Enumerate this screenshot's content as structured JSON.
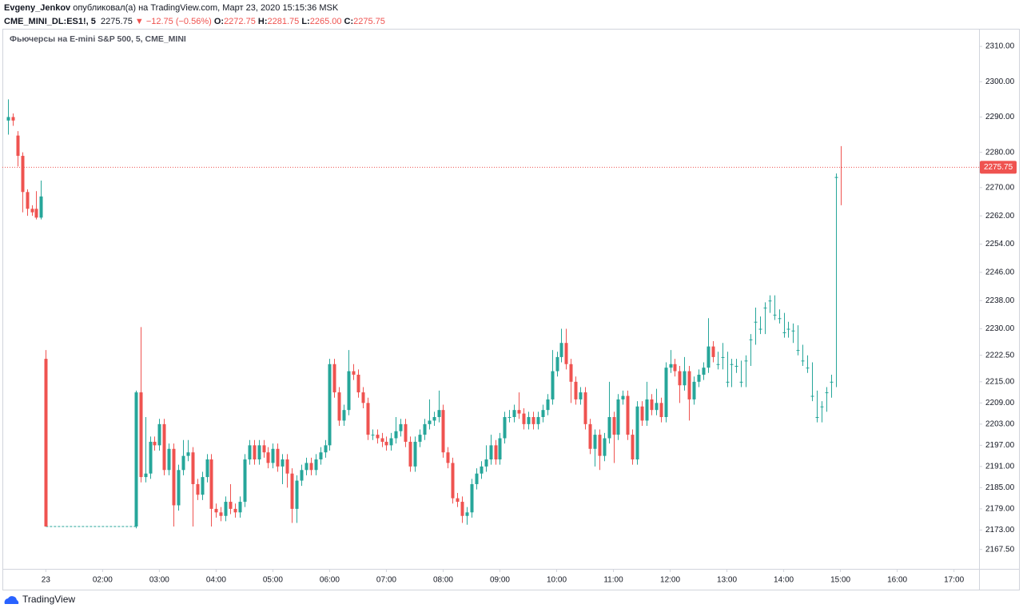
{
  "header": {
    "author": "Evgeny_Jenkov",
    "published": "опубликовал(а) на TradingView.com, Март 23, 2020 15:15:36 MSK",
    "symbol": "CME_MINI_DL:ES1!, 5",
    "price": "2275.75",
    "change": "▼ −12.75 (−0.56%)",
    "o_label": "O:",
    "o": "2272.75",
    "h_label": "H:",
    "h": "2281.75",
    "l_label": "L:",
    "l": "2265.00",
    "c_label": "C:",
    "c": "2275.75"
  },
  "footer": {
    "brand": "TradingView"
  },
  "chart_data": {
    "type": "candlestick",
    "title": "Фьючерсы на E-mini S&P 500, 5, CME_MINI",
    "xlim": [
      -1.18,
      205.3
    ],
    "xticks": [
      {
        "value": 8,
        "label": "23"
      },
      {
        "value": 20,
        "label": "02:00"
      },
      {
        "value": 32,
        "label": "03:00"
      },
      {
        "value": 44,
        "label": "04:00"
      },
      {
        "value": 56,
        "label": "05:00"
      },
      {
        "value": 68,
        "label": "06:00"
      },
      {
        "value": 80,
        "label": "07:00"
      },
      {
        "value": 92,
        "label": "08:00"
      },
      {
        "value": 104,
        "label": "09:00"
      },
      {
        "value": 116,
        "label": "10:00"
      },
      {
        "value": 128,
        "label": "11:00"
      },
      {
        "value": 140,
        "label": "12:00"
      },
      {
        "value": 152,
        "label": "13:00"
      },
      {
        "value": 164,
        "label": "14:00"
      },
      {
        "value": 176,
        "label": "15:00"
      },
      {
        "value": 188,
        "label": "16:00"
      },
      {
        "value": 200,
        "label": "17:00"
      }
    ],
    "ylim": [
      2162,
      2315
    ],
    "yticks": [
      {
        "value": 2310,
        "label": "2310.00"
      },
      {
        "value": 2300,
        "label": "2300.00"
      },
      {
        "value": 2290,
        "label": "2290.00"
      },
      {
        "value": 2280,
        "label": "2280.00"
      },
      {
        "value": 2270,
        "label": "2270.00"
      },
      {
        "value": 2262,
        "label": "2262.00"
      },
      {
        "value": 2254,
        "label": "2254.00"
      },
      {
        "value": 2246,
        "label": "2246.00"
      },
      {
        "value": 2238,
        "label": "2238.00"
      },
      {
        "value": 2230,
        "label": "2230.00"
      },
      {
        "value": 2222.5,
        "label": "2222.50"
      },
      {
        "value": 2215,
        "label": "2215.00"
      },
      {
        "value": 2209,
        "label": "2209.00"
      },
      {
        "value": 2203,
        "label": "2203.00"
      },
      {
        "value": 2197,
        "label": "2197.00"
      },
      {
        "value": 2191,
        "label": "2191.00"
      },
      {
        "value": 2185,
        "label": "2185.00"
      },
      {
        "value": 2179,
        "label": "2179.00"
      },
      {
        "value": 2173,
        "label": "2173.00"
      },
      {
        "value": 2167.5,
        "label": "2167.50"
      }
    ],
    "grid": false,
    "last_price_line": true,
    "x": [
      0,
      1,
      2,
      3,
      4,
      5,
      6,
      7,
      8,
      27,
      28,
      29,
      30,
      31,
      32,
      33,
      34,
      35,
      36,
      37,
      38,
      39,
      40,
      41,
      42,
      43,
      44,
      45,
      46,
      47,
      48,
      49,
      50,
      51,
      52,
      53,
      54,
      55,
      56,
      57,
      58,
      59,
      60,
      61,
      62,
      63,
      64,
      65,
      66,
      67,
      68,
      69,
      70,
      71,
      72,
      73,
      74,
      75,
      76,
      77,
      78,
      79,
      80,
      81,
      82,
      83,
      84,
      85,
      86,
      87,
      88,
      89,
      90,
      91,
      92,
      93,
      94,
      95,
      96,
      97,
      98,
      99,
      100,
      101,
      102,
      103,
      104,
      105,
      106,
      107,
      108,
      109,
      110,
      111,
      112,
      113,
      114,
      115,
      116,
      117,
      118,
      119,
      120,
      121,
      122,
      123,
      124,
      125,
      126,
      127,
      128,
      129,
      130,
      131,
      132,
      133,
      134,
      135,
      136,
      137,
      138,
      139,
      140,
      141,
      142,
      143,
      144,
      145,
      146,
      147,
      148,
      149,
      150,
      151,
      152,
      153,
      154,
      155,
      156,
      157,
      158,
      159,
      160,
      161,
      162,
      163,
      164,
      165,
      166,
      167,
      168,
      169,
      170,
      171,
      172,
      173,
      174,
      175,
      176
    ],
    "series": [
      {
        "up_color": "#26a69a",
        "down_color": "#ef5350",
        "open": [
          2289,
          2290,
          2284.75,
          2279,
          2268.75,
          2264,
          2264,
          2261.5,
          2221.5,
          2174,
          2212,
          2188,
          2189,
          2198,
          2197,
          2203,
          2190,
          2196,
          2180,
          2190,
          2194,
          2195,
          2186,
          2183,
          2188,
          2193,
          2179,
          2178,
          2177,
          2181,
          2179,
          2178,
          2181,
          2193,
          2197,
          2193,
          2197,
          2195,
          2192,
          2196,
          2191,
          2193,
          2189,
          2179,
          2187,
          2190,
          2192,
          2190,
          2193,
          2195,
          2197,
          2220,
          2212,
          2204,
          2207,
          2218,
          2217,
          2212,
          2209,
          2200,
          2200,
          2199,
          2198,
          2197,
          2199,
          2201,
          2203,
          2198,
          2191,
          2198,
          2200,
          2203,
          2204,
          2205,
          2207,
          2195,
          2192,
          2182,
          2181,
          2177,
          2178,
          2186,
          2189,
          2191,
          2193,
          2197,
          2193,
          2199,
          2205,
          2205,
          2207,
          2206,
          2203,
          2205,
          2203,
          2205,
          2207,
          2210,
          2218,
          2222,
          2226,
          2220,
          2215,
          2210,
          2212,
          2203,
          2196,
          2200,
          2194,
          2199,
          2205,
          2200,
          2210,
          2211,
          2200,
          2193,
          2208,
          2204,
          2210,
          2207,
          2209,
          2205,
          2219,
          2220,
          2218,
          2214,
          2218,
          2210,
          2215,
          2217,
          2219,
          2225,
          2220,
          2222,
          2215,
          2220,
          2219.5,
          2215,
          2221,
          2227,
          2232,
          2230,
          2236,
          2238,
          2234,
          2233,
          2229,
          2230,
          2229.5,
          2224,
          2221,
          2219,
          2211,
          2205,
          2208,
          2212,
          2215,
          2272.75
        ],
        "high": [
          2295,
          2291,
          2286,
          2280,
          2269.5,
          2265,
          2269,
          2272,
          2224,
          2212.5,
          2230.5,
          2205,
          2199.5,
          2199.5,
          2204.5,
          2204.5,
          2197.5,
          2197.5,
          2191.5,
          2198.5,
          2198.5,
          2196.5,
          2187.5,
          2189.5,
          2194.5,
          2194.5,
          2180.5,
          2179.5,
          2182.5,
          2186,
          2180.5,
          2182.5,
          2194.5,
          2198.5,
          2198.5,
          2198.5,
          2198.5,
          2196.5,
          2197.5,
          2197.5,
          2194.5,
          2194.5,
          2190.5,
          2188.5,
          2191.5,
          2193.5,
          2193.5,
          2194.5,
          2196.5,
          2198.5,
          2221.5,
          2221.5,
          2213.5,
          2208.5,
          2224,
          2220,
          2218.5,
          2213.5,
          2210.5,
          2201.5,
          2201.5,
          2200.5,
          2199.5,
          2200.5,
          2205,
          2204.5,
          2204.5,
          2199.5,
          2199.5,
          2201.5,
          2204.5,
          2210,
          2206.5,
          2212.5,
          2208.5,
          2196.5,
          2193.5,
          2183.5,
          2182.5,
          2179.5,
          2187.5,
          2190.5,
          2192.5,
          2197,
          2200,
          2198.5,
          2200.5,
          2206.5,
          2207,
          2208.5,
          2212,
          2207.5,
          2206.5,
          2206.5,
          2206.5,
          2208.5,
          2211.5,
          2224,
          2223.5,
          2230,
          2230,
          2221.5,
          2216.5,
          2213.5,
          2213.5,
          2204.5,
          2201.5,
          2201.5,
          2200.5,
          2215,
          2206.5,
          2211.5,
          2212.5,
          2212.5,
          2201.5,
          2209.5,
          2209.5,
          2215,
          2211.5,
          2213,
          2210.5,
          2220.5,
          2224,
          2221.5,
          2219.5,
          2222,
          2219.5,
          2216.5,
          2218.5,
          2220.5,
          2233,
          2226.5,
          2223.5,
          2226,
          2223.5,
          2221.5,
          2221.5,
          2221,
          2222.5,
          2228.5,
          2236,
          2233.5,
          2237.5,
          2239.5,
          2239.5,
          2235.5,
          2234.5,
          2232,
          2231.5,
          2231,
          2225.5,
          2222.5,
          2220.5,
          2212.5,
          2209.5,
          2213.5,
          2217,
          2274,
          2281.75
        ],
        "low": [
          2285,
          2287.5,
          2276,
          2263,
          2262,
          2262,
          2261,
          2261,
          2174,
          2173.5,
          2186.5,
          2186.5,
          2187.5,
          2195.5,
          2195.5,
          2188.5,
          2188.5,
          2174,
          2178.5,
          2188.5,
          2192.5,
          2174,
          2181.5,
          2181.5,
          2186.5,
          2174,
          2176.5,
          2175.5,
          2175.5,
          2177.5,
          2176.5,
          2176.5,
          2179.5,
          2191.5,
          2191.5,
          2191.5,
          2193.5,
          2190.5,
          2190.5,
          2189.5,
          2186,
          2185,
          2175,
          2175,
          2185.5,
          2188.5,
          2188.5,
          2188.5,
          2191.5,
          2193.5,
          2195.5,
          2210.5,
          2202.5,
          2202.5,
          2205.5,
          2215.5,
          2210.5,
          2207.5,
          2198.5,
          2198.5,
          2197.5,
          2196.5,
          2195.5,
          2195.5,
          2197.5,
          2199.5,
          2196.5,
          2189.5,
          2189.5,
          2196.5,
          2198.5,
          2201.5,
          2202.5,
          2203.5,
          2193.5,
          2190.5,
          2180.5,
          2179.5,
          2175,
          2174.5,
          2176.5,
          2184.5,
          2187.5,
          2189.5,
          2191.5,
          2191.5,
          2191.5,
          2197.5,
          2203.5,
          2203.5,
          2204.5,
          2201.5,
          2201.5,
          2201.5,
          2201.5,
          2203.5,
          2205.5,
          2208.5,
          2216.5,
          2220.5,
          2218.5,
          2209,
          2208.5,
          2208.5,
          2201.5,
          2194.5,
          2191,
          2190,
          2192.5,
          2197.5,
          2192,
          2198.5,
          2208.5,
          2198.5,
          2191.5,
          2191.5,
          2202.5,
          2202.5,
          2205.5,
          2205.5,
          2203.5,
          2203.5,
          2217.5,
          2216.5,
          2209,
          2212.5,
          2204,
          2208.5,
          2213.5,
          2215.5,
          2217.5,
          2220.5,
          2218.5,
          2218.5,
          2213.5,
          2213.5,
          2217.5,
          2213.5,
          2213.5,
          2219.5,
          2225.5,
          2228.5,
          2228.5,
          2234.5,
          2232.5,
          2231.5,
          2227.5,
          2227.5,
          2226,
          2222.5,
          2219.5,
          2217.5,
          2209.5,
          2203.5,
          2203.5,
          2206.5,
          2210.5,
          2213.5,
          2265
        ],
        "close": [
          2290,
          2289,
          2279,
          2268.75,
          2264,
          2263,
          2261.5,
          2267.5,
          2174,
          2212,
          2188,
          2189,
          2198,
          2197,
          2203,
          2190,
          2196,
          2180,
          2190,
          2194,
          2195,
          2186,
          2183,
          2188,
          2193,
          2179,
          2178,
          2177,
          2181,
          2179,
          2178,
          2181,
          2193,
          2197,
          2193,
          2197,
          2195,
          2192,
          2196,
          2191,
          2193,
          2189,
          2179,
          2187,
          2190,
          2192,
          2190,
          2193,
          2195,
          2197,
          2220,
          2212,
          2204,
          2207,
          2218,
          2217,
          2212,
          2209,
          2200,
          2200,
          2199,
          2198,
          2197,
          2199,
          2201,
          2203,
          2198,
          2191,
          2198,
          2200,
          2203,
          2204,
          2205,
          2207,
          2195,
          2192,
          2182,
          2181,
          2177,
          2178,
          2186,
          2189,
          2191,
          2193,
          2197,
          2193,
          2199,
          2205,
          2205,
          2207,
          2206,
          2203,
          2205,
          2203,
          2205,
          2207,
          2210,
          2218,
          2222,
          2226,
          2220,
          2215,
          2210,
          2212,
          2203,
          2196,
          2200,
          2194,
          2199,
          2205,
          2200,
          2210,
          2211,
          2200,
          2193,
          2208,
          2204,
          2210,
          2207,
          2209,
          2205,
          2219,
          2220,
          2218,
          2214,
          2218,
          2210,
          2215,
          2217,
          2219,
          2225,
          2222,
          2220,
          2222,
          2215,
          2220,
          2219.5,
          2215,
          2221,
          2227,
          2232,
          2230,
          2236,
          2238,
          2234,
          2233,
          2229,
          2230,
          2229.5,
          2224,
          2221,
          2219,
          2211,
          2205,
          2208,
          2212,
          2215,
          2273,
          2275.75
        ]
      }
    ]
  }
}
